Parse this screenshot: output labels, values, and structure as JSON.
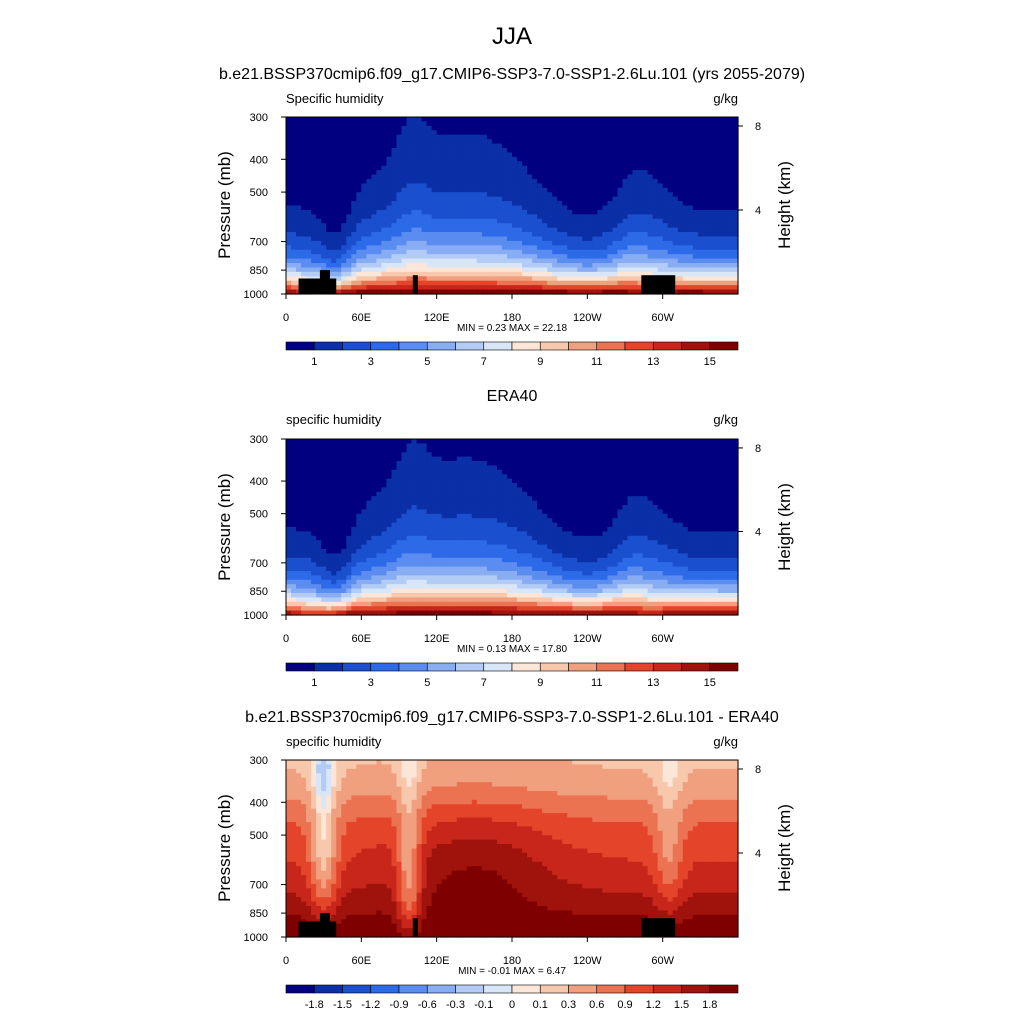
{
  "figure_title": "JJA",
  "palette": [
    "#000080",
    "#0b2fa6",
    "#1a4fce",
    "#2d6ae8",
    "#5b8cf0",
    "#88adf3",
    "#b3ccf5",
    "#d8e6f7",
    "#fbe6d8",
    "#f8c8ad",
    "#f1a07f",
    "#eb7352",
    "#e4452a",
    "#c8261a",
    "#a0120c",
    "#7e0000"
  ],
  "terrain_color": "#000000",
  "chart_data": [
    {
      "type": "heatmap",
      "title": "b.e21.BSSP370cmip6.f09_g17.CMIP6-SSP3-7.0-SSP1-2.6Lu.101 (yrs 2055-2079)",
      "left_label": "Specific humidity",
      "units": "g/kg",
      "ylabel": "Pressure (mb)",
      "right_label": "Height (km)",
      "y_ticks": [
        "300",
        "400",
        "500",
        "700",
        "850",
        "1000"
      ],
      "y_tick_values": [
        300,
        400,
        500,
        700,
        850,
        1000
      ],
      "height_ticks": [
        "8",
        "4"
      ],
      "height_tick_values": [
        8,
        4
      ],
      "x_ticks": [
        "0",
        "60E",
        "120E",
        "180",
        "120W",
        "60W"
      ],
      "x_tick_values": [
        0,
        60,
        120,
        180,
        240,
        300
      ],
      "xlim": [
        0,
        360
      ],
      "stats": "MIN =   0.23  MAX =   22.18",
      "colorbar_labels": [
        "1",
        "3",
        "5",
        "7",
        "9",
        "11",
        "13",
        "15"
      ],
      "colorbar_range": [
        0,
        16
      ],
      "terrain": [
        [
          10,
          40,
          900
        ],
        [
          27,
          35,
          850
        ],
        [
          101,
          105,
          880
        ],
        [
          283,
          310,
          880
        ]
      ]
    },
    {
      "type": "heatmap",
      "title": "ERA40",
      "left_label": "specific humidity",
      "units": "g/kg",
      "ylabel": "Pressure (mb)",
      "right_label": "Height (km)",
      "y_ticks": [
        "300",
        "400",
        "500",
        "700",
        "850",
        "1000"
      ],
      "y_tick_values": [
        300,
        400,
        500,
        700,
        850,
        1000
      ],
      "height_ticks": [
        "8",
        "4"
      ],
      "height_tick_values": [
        8,
        4
      ],
      "x_ticks": [
        "0",
        "60E",
        "120E",
        "180",
        "120W",
        "60W"
      ],
      "x_tick_values": [
        0,
        60,
        120,
        180,
        240,
        300
      ],
      "xlim": [
        0,
        360
      ],
      "stats": "MIN =   0.13  MAX =   17.80",
      "colorbar_labels": [
        "1",
        "3",
        "5",
        "7",
        "9",
        "11",
        "13",
        "15"
      ],
      "colorbar_range": [
        0,
        16
      ],
      "terrain": []
    },
    {
      "type": "heatmap",
      "title": "b.e21.BSSP370cmip6.f09_g17.CMIP6-SSP3-7.0-SSP1-2.6Lu.101 - ERA40",
      "left_label": "specific humidity",
      "units": "g/kg",
      "ylabel": "Pressure (mb)",
      "right_label": "Height (km)",
      "y_ticks": [
        "300",
        "400",
        "500",
        "700",
        "850",
        "1000"
      ],
      "y_tick_values": [
        300,
        400,
        500,
        700,
        850,
        1000
      ],
      "height_ticks": [
        "8",
        "4"
      ],
      "height_tick_values": [
        8,
        4
      ],
      "x_ticks": [
        "0",
        "60E",
        "120E",
        "180",
        "120W",
        "60W"
      ],
      "x_tick_values": [
        0,
        60,
        120,
        180,
        240,
        300
      ],
      "xlim": [
        0,
        360
      ],
      "stats": "MIN =  -0.01  MAX =   6.47",
      "colorbar_labels": [
        "-1.8",
        "-1.5",
        "-1.2",
        "-0.9",
        "-0.6",
        "-0.3",
        "-0.1",
        "0",
        "0.1",
        "0.3",
        "0.6",
        "0.9",
        "1.2",
        "1.5",
        "1.8"
      ],
      "colorbar_levels": [
        -1.8,
        -1.5,
        -1.2,
        -0.9,
        -0.6,
        -0.3,
        -0.1,
        0,
        0.1,
        0.3,
        0.6,
        0.9,
        1.2,
        1.5,
        1.8
      ],
      "terrain": [
        [
          10,
          40,
          900
        ],
        [
          27,
          35,
          850
        ],
        [
          101,
          105,
          880
        ],
        [
          283,
          310,
          880
        ]
      ]
    }
  ]
}
